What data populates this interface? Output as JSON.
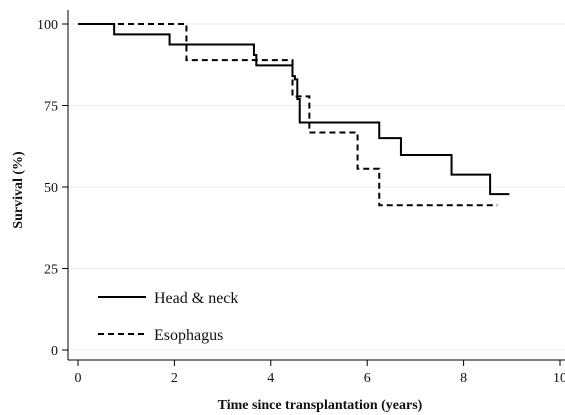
{
  "chart_data": {
    "type": "line",
    "step": true,
    "xlabel": "Time since transplantation (years)",
    "ylabel": "Survival (%)",
    "xlim": [
      0,
      10
    ],
    "ylim": [
      0,
      100
    ],
    "x_ticks": [
      {
        "value": 0,
        "label": "0"
      },
      {
        "value": 2,
        "label": "2"
      },
      {
        "value": 4,
        "label": "4"
      },
      {
        "value": 6,
        "label": "6"
      },
      {
        "value": 8,
        "label": "8"
      },
      {
        "value": 10,
        "label": "10"
      }
    ],
    "y_ticks": [
      {
        "value": 0,
        "label": "0"
      },
      {
        "value": 25,
        "label": "25"
      },
      {
        "value": 50,
        "label": "50"
      },
      {
        "value": 75,
        "label": "75"
      },
      {
        "value": 100,
        "label": "100"
      }
    ],
    "grid": "horizontal, light",
    "legend_position": "bottom-left",
    "series": [
      {
        "name": "Head & neck",
        "style": "solid",
        "color": "#000000",
        "x": [
          0,
          0.75,
          1.9,
          3.65,
          3.7,
          4.45,
          4.5,
          4.55,
          4.6,
          6.25,
          6.7,
          7.75,
          8.55,
          8.95
        ],
        "y": [
          100,
          96.8,
          93.7,
          90.5,
          87.3,
          84.0,
          83.0,
          77.0,
          69.8,
          65.0,
          59.8,
          53.8,
          47.8,
          47.8
        ]
      },
      {
        "name": "Esophagus",
        "style": "dashed",
        "color": "#000000",
        "x": [
          0,
          2.25,
          4.45,
          4.5,
          4.8,
          5.8,
          6.25,
          8.7
        ],
        "y": [
          100,
          88.9,
          77.8,
          77.8,
          66.7,
          55.6,
          44.4,
          44.4
        ]
      }
    ]
  }
}
